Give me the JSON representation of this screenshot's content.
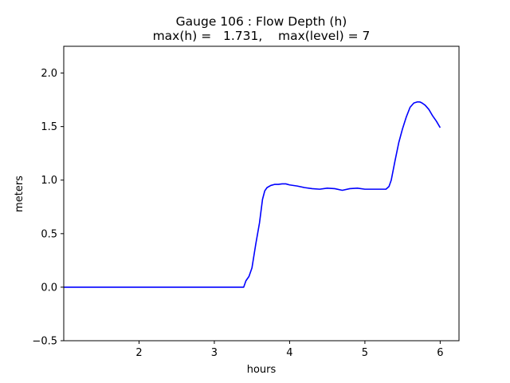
{
  "chart_data": {
    "type": "line",
    "title": "Gauge 106 : Flow Depth (h)",
    "subtitle": "max(h) =   1.731,    max(level) = 7",
    "xlabel": "hours",
    "ylabel": "meters",
    "xlim": [
      1.0,
      6.25
    ],
    "ylim": [
      -0.5,
      2.25
    ],
    "xticks": [
      2,
      3,
      4,
      5,
      6
    ],
    "xtick_labels": [
      "2",
      "3",
      "4",
      "5",
      "6"
    ],
    "yticks": [
      -0.5,
      0.0,
      0.5,
      1.0,
      1.5,
      2.0
    ],
    "ytick_labels": [
      "−0.5",
      "0.0",
      "0.5",
      "1.0",
      "1.5",
      "2.0"
    ],
    "grid": false,
    "series": [
      {
        "color": "#0000ff",
        "x": [
          1.0,
          1.5,
          2.0,
          2.5,
          3.0,
          3.39,
          3.42,
          3.46,
          3.5,
          3.55,
          3.6,
          3.64,
          3.67,
          3.7,
          3.75,
          3.8,
          3.85,
          3.9,
          3.95,
          4.0,
          4.1,
          4.2,
          4.3,
          4.4,
          4.5,
          4.6,
          4.7,
          4.8,
          4.9,
          5.0,
          5.1,
          5.2,
          5.28,
          5.32,
          5.35,
          5.4,
          5.45,
          5.5,
          5.55,
          5.6,
          5.65,
          5.7,
          5.73,
          5.76,
          5.8,
          5.85,
          5.9,
          5.95,
          6.0
        ],
        "y": [
          0.0,
          0.0,
          0.0,
          0.0,
          0.0,
          0.0,
          0.06,
          0.1,
          0.18,
          0.4,
          0.6,
          0.82,
          0.9,
          0.93,
          0.95,
          0.96,
          0.96,
          0.965,
          0.965,
          0.955,
          0.945,
          0.93,
          0.92,
          0.915,
          0.925,
          0.92,
          0.905,
          0.92,
          0.925,
          0.915,
          0.915,
          0.915,
          0.915,
          0.94,
          1.0,
          1.18,
          1.35,
          1.48,
          1.59,
          1.68,
          1.72,
          1.731,
          1.73,
          1.72,
          1.7,
          1.66,
          1.6,
          1.55,
          1.49
        ]
      }
    ]
  }
}
